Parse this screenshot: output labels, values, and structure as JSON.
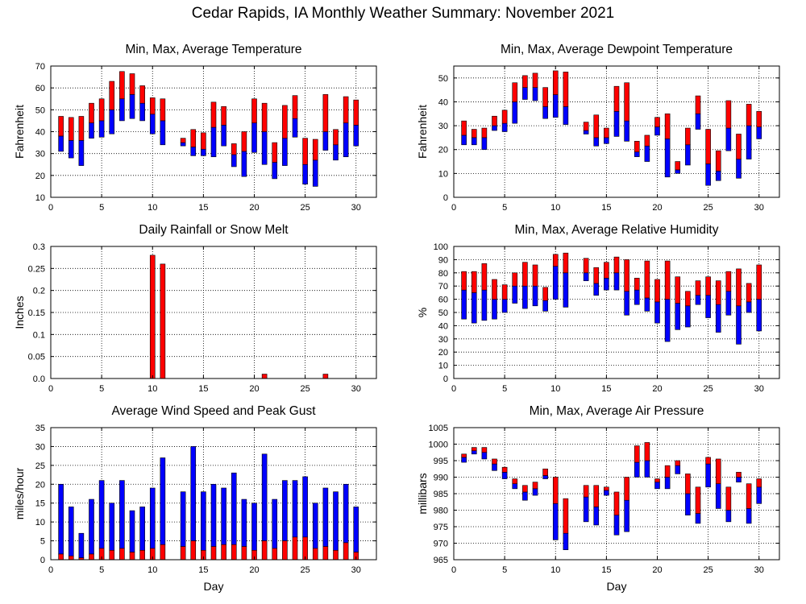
{
  "page": {
    "title": "Cedar Rapids, IA Monthly Weather Summary: November 2021"
  },
  "colors": {
    "upper": "#ff0000",
    "lower": "#0000ff",
    "grid": "#000000",
    "frame": "#000000"
  },
  "chart_data": [
    {
      "id": "temperature",
      "type": "bar",
      "style": "min-max-avg-floating",
      "title": "Min, Max, Average Temperature",
      "xlabel": "",
      "ylabel": "Fahrenheit",
      "xlim": [
        0,
        32
      ],
      "ylim": [
        10,
        70
      ],
      "xticks": [
        0,
        5,
        10,
        15,
        20,
        25,
        30
      ],
      "yticks": [
        10,
        20,
        30,
        40,
        50,
        60,
        70
      ],
      "grid": true,
      "series": [
        {
          "day": 1,
          "min": 31,
          "avg": 38,
          "max": 47
        },
        {
          "day": 2,
          "min": 28,
          "avg": 36,
          "max": 46.5
        },
        {
          "day": 3,
          "min": 24.5,
          "avg": 36,
          "max": 47
        },
        {
          "day": 4,
          "min": 37,
          "avg": 44,
          "max": 53
        },
        {
          "day": 5,
          "min": 37.5,
          "avg": 45,
          "max": 55
        },
        {
          "day": 6,
          "min": 39,
          "avg": 50,
          "max": 63
        },
        {
          "day": 7,
          "min": 45,
          "avg": 55,
          "max": 67.5
        },
        {
          "day": 8,
          "min": 46,
          "avg": 57,
          "max": 66.5
        },
        {
          "day": 9,
          "min": 45,
          "avg": 53,
          "max": 61
        },
        {
          "day": 10,
          "min": 39,
          "avg": 48,
          "max": 55.5
        },
        {
          "day": 11,
          "min": 34,
          "avg": 45,
          "max": 55
        },
        {
          "day": 13,
          "min": 33.5,
          "avg": 35,
          "max": 37
        },
        {
          "day": 14,
          "min": 29,
          "avg": 33,
          "max": 41
        },
        {
          "day": 15,
          "min": 29,
          "avg": 32,
          "max": 39.5
        },
        {
          "day": 16,
          "min": 28.5,
          "avg": 42,
          "max": 53.5
        },
        {
          "day": 17,
          "min": 33.5,
          "avg": 43,
          "max": 51.5
        },
        {
          "day": 18,
          "min": 24,
          "avg": 29.5,
          "max": 34.5
        },
        {
          "day": 19,
          "min": 19.5,
          "avg": 31,
          "max": 40
        },
        {
          "day": 20,
          "min": 30.5,
          "avg": 44,
          "max": 55
        },
        {
          "day": 21,
          "min": 25,
          "avg": 40,
          "max": 53
        },
        {
          "day": 22,
          "min": 18.5,
          "avg": 26,
          "max": 35
        },
        {
          "day": 23,
          "min": 24.5,
          "avg": 37,
          "max": 52
        },
        {
          "day": 24,
          "min": 37.5,
          "avg": 46,
          "max": 56.5
        },
        {
          "day": 25,
          "min": 16,
          "avg": 25,
          "max": 37
        },
        {
          "day": 26,
          "min": 15,
          "avg": 27,
          "max": 36.5
        },
        {
          "day": 27,
          "min": 31.5,
          "avg": 40,
          "max": 57
        },
        {
          "day": 28,
          "min": 27,
          "avg": 34,
          "max": 41
        },
        {
          "day": 29,
          "min": 28.5,
          "avg": 44,
          "max": 56
        },
        {
          "day": 30,
          "min": 33.5,
          "avg": 43,
          "max": 54.5
        }
      ]
    },
    {
      "id": "dewpoint",
      "type": "bar",
      "style": "min-max-avg-floating",
      "title": "Min, Max, Average Dewpoint Temperature",
      "xlabel": "",
      "ylabel": "Fahrenheit",
      "xlim": [
        0,
        32
      ],
      "ylim": [
        0,
        55
      ],
      "xticks": [
        0,
        5,
        10,
        15,
        20,
        25,
        30
      ],
      "yticks": [
        0,
        10,
        20,
        30,
        40,
        50
      ],
      "grid": true,
      "series": [
        {
          "day": 1,
          "min": 22,
          "avg": 26,
          "max": 32
        },
        {
          "day": 2,
          "min": 22,
          "avg": 25,
          "max": 28.5
        },
        {
          "day": 3,
          "min": 20,
          "avg": 25,
          "max": 29
        },
        {
          "day": 4,
          "min": 28,
          "avg": 30,
          "max": 34
        },
        {
          "day": 5,
          "min": 27.5,
          "avg": 31,
          "max": 36.5
        },
        {
          "day": 6,
          "min": 31,
          "avg": 40,
          "max": 48
        },
        {
          "day": 7,
          "min": 41,
          "avg": 46,
          "max": 51
        },
        {
          "day": 8,
          "min": 40.5,
          "avg": 46,
          "max": 52
        },
        {
          "day": 9,
          "min": 33,
          "avg": 38,
          "max": 46
        },
        {
          "day": 10,
          "min": 33.5,
          "avg": 43,
          "max": 53
        },
        {
          "day": 11,
          "min": 30.5,
          "avg": 38,
          "max": 52.5
        },
        {
          "day": 13,
          "min": 26.5,
          "avg": 28,
          "max": 31.5
        },
        {
          "day": 14,
          "min": 21.5,
          "avg": 25,
          "max": 34.5
        },
        {
          "day": 15,
          "min": 22.5,
          "avg": 25,
          "max": 29
        },
        {
          "day": 16,
          "min": 25.5,
          "avg": 36,
          "max": 46.5
        },
        {
          "day": 17,
          "min": 23.5,
          "avg": 32,
          "max": 48
        },
        {
          "day": 18,
          "min": 17,
          "avg": 19,
          "max": 23.5
        },
        {
          "day": 19,
          "min": 15,
          "avg": 21.5,
          "max": 26
        },
        {
          "day": 20,
          "min": 26,
          "avg": 29.5,
          "max": 33.5
        },
        {
          "day": 21,
          "min": 8.5,
          "avg": 24.5,
          "max": 35
        },
        {
          "day": 22,
          "min": 10,
          "avg": 11.5,
          "max": 15
        },
        {
          "day": 23,
          "min": 13.5,
          "avg": 22,
          "max": 29
        },
        {
          "day": 24,
          "min": 28.5,
          "avg": 35,
          "max": 42.5
        },
        {
          "day": 25,
          "min": 5,
          "avg": 14,
          "max": 28.5
        },
        {
          "day": 26,
          "min": 7,
          "avg": 11,
          "max": 19.5
        },
        {
          "day": 27,
          "min": 19.5,
          "avg": 29,
          "max": 40.5
        },
        {
          "day": 28,
          "min": 8,
          "avg": 16,
          "max": 26.5
        },
        {
          "day": 29,
          "min": 16,
          "avg": 30,
          "max": 39
        },
        {
          "day": 30,
          "min": 24.5,
          "avg": 29.5,
          "max": 36
        }
      ]
    },
    {
      "id": "rainfall",
      "type": "bar",
      "style": "single-red",
      "title": "Daily Rainfall or Snow Melt",
      "xlabel": "",
      "ylabel": "Inches",
      "xlim": [
        0,
        32
      ],
      "ylim": [
        0,
        0.3
      ],
      "xticks": [
        0,
        5,
        10,
        15,
        20,
        25,
        30
      ],
      "yticks": [
        0,
        0.05,
        0.1,
        0.15,
        0.2,
        0.25,
        0.3
      ],
      "yticklabels": [
        "0.0",
        "0.05",
        "0.1",
        "0.15",
        "0.2",
        "0.25",
        "0.3"
      ],
      "grid": true,
      "series": [
        {
          "day": 10,
          "value": 0.28
        },
        {
          "day": 11,
          "value": 0.26
        },
        {
          "day": 21,
          "value": 0.01
        },
        {
          "day": 27,
          "value": 0.01
        }
      ]
    },
    {
      "id": "humidity",
      "type": "bar",
      "style": "min-max-avg-floating",
      "title": "Min, Max, Average Relative Humidity",
      "xlabel": "",
      "ylabel": "%",
      "xlim": [
        0,
        32
      ],
      "ylim": [
        0,
        100
      ],
      "xticks": [
        0,
        5,
        10,
        15,
        20,
        25,
        30
      ],
      "yticks": [
        0,
        10,
        20,
        30,
        40,
        50,
        60,
        70,
        80,
        90,
        100
      ],
      "grid": true,
      "series": [
        {
          "day": 1,
          "min": 45,
          "avg": 67,
          "max": 81
        },
        {
          "day": 2,
          "min": 42,
          "avg": 65,
          "max": 81
        },
        {
          "day": 3,
          "min": 44,
          "avg": 67,
          "max": 87
        },
        {
          "day": 4,
          "min": 45,
          "avg": 60,
          "max": 75
        },
        {
          "day": 5,
          "min": 50,
          "avg": 60,
          "max": 71
        },
        {
          "day": 6,
          "min": 57,
          "avg": 70,
          "max": 80
        },
        {
          "day": 7,
          "min": 53,
          "avg": 70,
          "max": 88
        },
        {
          "day": 8,
          "min": 55,
          "avg": 70,
          "max": 86
        },
        {
          "day": 9,
          "min": 51,
          "avg": 59,
          "max": 69
        },
        {
          "day": 10,
          "min": 60,
          "avg": 85,
          "max": 94
        },
        {
          "day": 11,
          "min": 54,
          "avg": 80,
          "max": 95
        },
        {
          "day": 13,
          "min": 74,
          "avg": 80,
          "max": 91
        },
        {
          "day": 14,
          "min": 63,
          "avg": 72,
          "max": 84
        },
        {
          "day": 15,
          "min": 67,
          "avg": 76,
          "max": 88
        },
        {
          "day": 16,
          "min": 67,
          "avg": 80,
          "max": 92
        },
        {
          "day": 17,
          "min": 48,
          "avg": 66,
          "max": 90
        },
        {
          "day": 18,
          "min": 56,
          "avg": 67,
          "max": 76
        },
        {
          "day": 19,
          "min": 51,
          "avg": 61,
          "max": 89
        },
        {
          "day": 20,
          "min": 42,
          "avg": 58,
          "max": 75
        },
        {
          "day": 21,
          "min": 28,
          "avg": 60,
          "max": 89
        },
        {
          "day": 22,
          "min": 37,
          "avg": 57,
          "max": 77
        },
        {
          "day": 23,
          "min": 39,
          "avg": 55,
          "max": 66
        },
        {
          "day": 24,
          "min": 56,
          "avg": 63,
          "max": 74
        },
        {
          "day": 25,
          "min": 46,
          "avg": 63,
          "max": 77
        },
        {
          "day": 26,
          "min": 35,
          "avg": 56,
          "max": 74
        },
        {
          "day": 27,
          "min": 48,
          "avg": 66,
          "max": 81
        },
        {
          "day": 28,
          "min": 26,
          "avg": 55,
          "max": 83
        },
        {
          "day": 29,
          "min": 50,
          "avg": 58,
          "max": 72
        },
        {
          "day": 30,
          "min": 36,
          "avg": 60,
          "max": 86
        }
      ]
    },
    {
      "id": "wind",
      "type": "bar",
      "style": "avg-and-peak",
      "title": "Average Wind Speed and Peak Gust",
      "xlabel": "Day",
      "ylabel": "miles/hour",
      "xlim": [
        0,
        32
      ],
      "ylim": [
        0,
        35
      ],
      "xticks": [
        0,
        5,
        10,
        15,
        20,
        25,
        30
      ],
      "yticks": [
        0,
        5,
        10,
        15,
        20,
        25,
        30,
        35
      ],
      "grid": true,
      "series": [
        {
          "day": 1,
          "avg": 1.5,
          "gust": 20
        },
        {
          "day": 2,
          "avg": 1,
          "gust": 14
        },
        {
          "day": 3,
          "avg": 0.5,
          "gust": 7
        },
        {
          "day": 4,
          "avg": 1.5,
          "gust": 16
        },
        {
          "day": 5,
          "avg": 3,
          "gust": 21
        },
        {
          "day": 6,
          "avg": 2.5,
          "gust": 15
        },
        {
          "day": 7,
          "avg": 3,
          "gust": 21
        },
        {
          "day": 8,
          "avg": 2,
          "gust": 13
        },
        {
          "day": 9,
          "avg": 2.5,
          "gust": 14
        },
        {
          "day": 10,
          "avg": 3,
          "gust": 19
        },
        {
          "day": 11,
          "avg": 4,
          "gust": 27
        },
        {
          "day": 13,
          "avg": 3.5,
          "gust": 18
        },
        {
          "day": 14,
          "avg": 5,
          "gust": 30
        },
        {
          "day": 15,
          "avg": 2.5,
          "gust": 18
        },
        {
          "day": 16,
          "avg": 3.5,
          "gust": 20
        },
        {
          "day": 17,
          "avg": 4,
          "gust": 19
        },
        {
          "day": 18,
          "avg": 4,
          "gust": 23
        },
        {
          "day": 19,
          "avg": 3.5,
          "gust": 16
        },
        {
          "day": 20,
          "avg": 2.5,
          "gust": 15
        },
        {
          "day": 21,
          "avg": 5,
          "gust": 28
        },
        {
          "day": 22,
          "avg": 3,
          "gust": 16
        },
        {
          "day": 23,
          "avg": 5,
          "gust": 21
        },
        {
          "day": 24,
          "avg": 6,
          "gust": 21
        },
        {
          "day": 25,
          "avg": 6,
          "gust": 22
        },
        {
          "day": 26,
          "avg": 3,
          "gust": 15
        },
        {
          "day": 27,
          "avg": 3.5,
          "gust": 19
        },
        {
          "day": 28,
          "avg": 2.5,
          "gust": 18
        },
        {
          "day": 29,
          "avg": 4.5,
          "gust": 20
        },
        {
          "day": 30,
          "avg": 2,
          "gust": 14
        }
      ]
    },
    {
      "id": "pressure",
      "type": "bar",
      "style": "min-max-avg-floating",
      "title": "Min, Max, Average Air Pressure",
      "xlabel": "Day",
      "ylabel": "millibars",
      "xlim": [
        0,
        32
      ],
      "ylim": [
        965,
        1005
      ],
      "xticks": [
        0,
        5,
        10,
        15,
        20,
        25,
        30
      ],
      "yticks": [
        965,
        970,
        975,
        980,
        985,
        990,
        995,
        1000,
        1005
      ],
      "grid": true,
      "series": [
        {
          "day": 1,
          "min": 994.5,
          "avg": 996,
          "max": 997
        },
        {
          "day": 2,
          "min": 997,
          "avg": 998,
          "max": 999
        },
        {
          "day": 3,
          "min": 995.5,
          "avg": 997.5,
          "max": 999
        },
        {
          "day": 4,
          "min": 992,
          "avg": 994,
          "max": 995.5
        },
        {
          "day": 5,
          "min": 989.5,
          "avg": 991.5,
          "max": 993
        },
        {
          "day": 6,
          "min": 986.5,
          "avg": 988,
          "max": 989.5
        },
        {
          "day": 7,
          "min": 983,
          "avg": 985.5,
          "max": 987.5
        },
        {
          "day": 8,
          "min": 984.5,
          "avg": 986.5,
          "max": 988.5
        },
        {
          "day": 9,
          "min": 989.5,
          "avg": 990.5,
          "max": 992.5
        },
        {
          "day": 10,
          "min": 971,
          "avg": 982,
          "max": 990
        },
        {
          "day": 11,
          "min": 968,
          "avg": 973,
          "max": 983.5
        },
        {
          "day": 13,
          "min": 976.5,
          "avg": 984,
          "max": 987.5
        },
        {
          "day": 14,
          "min": 975.5,
          "avg": 981,
          "max": 987.5
        },
        {
          "day": 15,
          "min": 984.5,
          "avg": 986,
          "max": 987
        },
        {
          "day": 16,
          "min": 972.5,
          "avg": 978.5,
          "max": 985.5
        },
        {
          "day": 17,
          "min": 973.5,
          "avg": 983,
          "max": 990
        },
        {
          "day": 18,
          "min": 990,
          "avg": 994.5,
          "max": 999.5
        },
        {
          "day": 19,
          "min": 990,
          "avg": 995,
          "max": 1000.5
        },
        {
          "day": 20,
          "min": 986.5,
          "avg": 988.5,
          "max": 989.5
        },
        {
          "day": 21,
          "min": 986.5,
          "avg": 990,
          "max": 993.5
        },
        {
          "day": 22,
          "min": 991,
          "avg": 993.5,
          "max": 995
        },
        {
          "day": 23,
          "min": 978.5,
          "avg": 985,
          "max": 991
        },
        {
          "day": 24,
          "min": 976,
          "avg": 979,
          "max": 987
        },
        {
          "day": 25,
          "min": 987,
          "avg": 994,
          "max": 996
        },
        {
          "day": 26,
          "min": 980.5,
          "avg": 988,
          "max": 995.5
        },
        {
          "day": 27,
          "min": 976.5,
          "avg": 980,
          "max": 987
        },
        {
          "day": 28,
          "min": 988.5,
          "avg": 990,
          "max": 991.5
        },
        {
          "day": 29,
          "min": 976,
          "avg": 980.5,
          "max": 988
        },
        {
          "day": 30,
          "min": 982,
          "avg": 987,
          "max": 989.5
        }
      ]
    }
  ]
}
